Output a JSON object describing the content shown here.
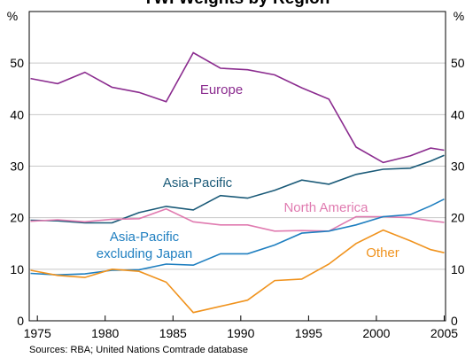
{
  "chart_data": {
    "type": "line",
    "title": "TWI Weights by Region",
    "y_label": "%",
    "y2_label": "%",
    "source": "Sources: RBA; United Nations Comtrade database",
    "x": [
      1974.5,
      1976.5,
      1978.5,
      1980.5,
      1982.5,
      1984.5,
      1986.5,
      1988.5,
      1990.5,
      1992.5,
      1994.5,
      1996.5,
      1998.5,
      2000.5,
      2002.5,
      2004,
      2005
    ],
    "xlim": [
      1974.4,
      2005.1
    ],
    "xticks": [
      1975,
      1980,
      1985,
      1990,
      1995,
      2000,
      2005
    ],
    "ylim": [
      0,
      60
    ],
    "yticks": [
      0,
      10,
      20,
      30,
      40,
      50
    ],
    "grid": true,
    "series": [
      {
        "name": "Europe",
        "color": "#8b2c8f",
        "values": [
          47,
          46,
          48.2,
          45.3,
          44.3,
          42.5,
          52,
          49,
          48.7,
          47.7,
          45.2,
          43,
          33.7,
          30.7,
          32,
          33.5,
          33.1
        ]
      },
      {
        "name": "Asia-Pacific",
        "color": "#1a5a78",
        "values": [
          19.5,
          19.4,
          19,
          19,
          21,
          22.2,
          21.5,
          24.3,
          23.8,
          25.3,
          27.3,
          26.5,
          28.4,
          29.4,
          29.6,
          31,
          32.1
        ]
      },
      {
        "name": "North America",
        "color": "#e07bb0",
        "values": [
          19.3,
          19.6,
          19.2,
          19.7,
          19.8,
          21.7,
          19.2,
          18.6,
          18.6,
          17.4,
          17.5,
          17.4,
          20.2,
          20.2,
          20,
          19.4,
          19.1
        ]
      },
      {
        "name": "Asia-Pacific excluding Japan",
        "color": "#1f7fc0",
        "values": [
          9.2,
          8.9,
          9.1,
          9.8,
          9.9,
          11,
          10.8,
          13,
          13,
          14.7,
          17,
          17.4,
          18.6,
          20.2,
          20.6,
          22.3,
          23.6
        ]
      },
      {
        "name": "Other",
        "color": "#f0931e",
        "values": [
          9.8,
          8.8,
          8.4,
          10,
          9.6,
          7.5,
          1.6,
          2.8,
          4,
          7.8,
          8.1,
          11,
          15,
          17.6,
          15.5,
          13.8,
          13.2
        ]
      }
    ]
  }
}
